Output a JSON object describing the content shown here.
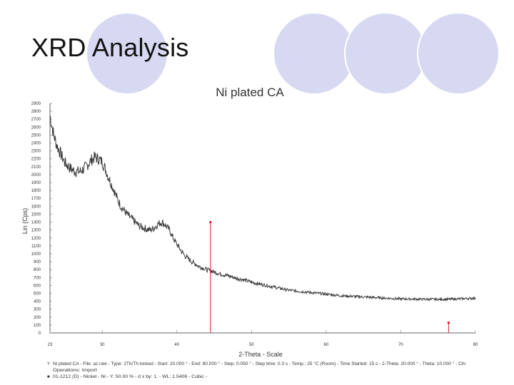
{
  "slide": {
    "title": "XRD Analysis",
    "circle_color": "#d7d9f2",
    "circle_stroke": "#ffffff"
  },
  "chart_data": {
    "type": "line",
    "title": "Ni plated CA",
    "xlabel": "2-Theta - Scale",
    "ylabel": "Lin (Cps)",
    "xlim": [
      23,
      80
    ],
    "ylim": [
      0,
      2900
    ],
    "x_ticks": [
      23,
      30,
      40,
      50,
      60,
      70,
      80
    ],
    "x_tick_labels": [
      "23",
      "30",
      "40",
      "50",
      "60",
      "70",
      "80"
    ],
    "y_ticks": [
      0,
      100,
      200,
      300,
      400,
      500,
      600,
      700,
      800,
      900,
      1000,
      1100,
      1200,
      1300,
      1400,
      1500,
      1600,
      1700,
      1800,
      1900,
      2000,
      2100,
      2200,
      2300,
      2400,
      2500,
      2600,
      2700,
      2800,
      2900
    ],
    "grid": false,
    "line_color": "#3a3a3a",
    "marker_color": "#e0202a",
    "series": [
      {
        "values": [
          [
            23,
            2750
          ],
          [
            23.5,
            2500
          ],
          [
            24,
            2350
          ],
          [
            24.5,
            2250
          ],
          [
            25,
            2150
          ],
          [
            25.5,
            2100
          ],
          [
            26,
            2060
          ],
          [
            26.5,
            2040
          ],
          [
            27,
            2040
          ],
          [
            27.5,
            2070
          ],
          [
            28,
            2120
          ],
          [
            28.5,
            2180
          ],
          [
            29,
            2220
          ],
          [
            29.5,
            2200
          ],
          [
            30,
            2160
          ],
          [
            30.5,
            2050
          ],
          [
            31,
            1930
          ],
          [
            31.5,
            1820
          ],
          [
            32,
            1700
          ],
          [
            32.5,
            1600
          ],
          [
            33,
            1540
          ],
          [
            33.5,
            1480
          ],
          [
            34,
            1440
          ],
          [
            34.5,
            1390
          ],
          [
            35,
            1350
          ],
          [
            35.5,
            1330
          ],
          [
            36,
            1310
          ],
          [
            36.5,
            1300
          ],
          [
            37,
            1330
          ],
          [
            37.5,
            1380
          ],
          [
            38,
            1400
          ],
          [
            38.5,
            1360
          ],
          [
            39,
            1300
          ],
          [
            39.5,
            1200
          ],
          [
            40,
            1120
          ],
          [
            40.5,
            1050
          ],
          [
            41,
            980
          ],
          [
            41.5,
            940
          ],
          [
            42,
            900
          ],
          [
            42.5,
            870
          ],
          [
            43,
            840
          ],
          [
            44,
            800
          ],
          [
            45,
            770
          ],
          [
            46,
            740
          ],
          [
            47,
            720
          ],
          [
            48,
            690
          ],
          [
            49,
            670
          ],
          [
            50,
            640
          ],
          [
            51,
            620
          ],
          [
            52,
            600
          ],
          [
            53,
            580
          ],
          [
            54,
            560
          ],
          [
            55,
            540
          ],
          [
            56,
            530
          ],
          [
            57,
            520
          ],
          [
            58,
            510
          ],
          [
            59,
            500
          ],
          [
            60,
            490
          ],
          [
            61,
            480
          ],
          [
            62,
            470
          ],
          [
            63,
            465
          ],
          [
            64,
            460
          ],
          [
            65,
            455
          ],
          [
            66,
            450
          ],
          [
            67,
            445
          ],
          [
            68,
            440
          ],
          [
            69,
            435
          ],
          [
            70,
            430
          ],
          [
            71,
            430
          ],
          [
            72,
            428
          ],
          [
            73,
            426
          ],
          [
            74,
            425
          ],
          [
            75,
            425
          ],
          [
            76,
            425
          ],
          [
            77,
            428
          ],
          [
            78,
            432
          ],
          [
            79,
            436
          ],
          [
            80,
            440
          ]
        ]
      }
    ],
    "reference_peaks": [
      {
        "x": 44.5,
        "y": 1400
      },
      {
        "x": 76.4,
        "y": 130
      }
    ],
    "legend": [
      {
        "marker": "Y",
        "text": "Ni plated CA - File: az.raw - Type: 2Th/Th locked - Start: 20.000 ° - End: 80.000 ° - Step: 0.050 ° - Step time: 0.3 s - Temp.: 25 °C (Room) - Time Started: 15 s - 2-Theta: 20.000 ° - Theta: 10.000 ° - Chi"
      },
      {
        "marker": "",
        "text": "Operations: Import"
      },
      {
        "marker": "■",
        "text": "01-1212 (D) - Nickel - Ni - Y: 50.00 % - d x by: 1. - WL: 1.5406 - Cubic -"
      }
    ]
  }
}
